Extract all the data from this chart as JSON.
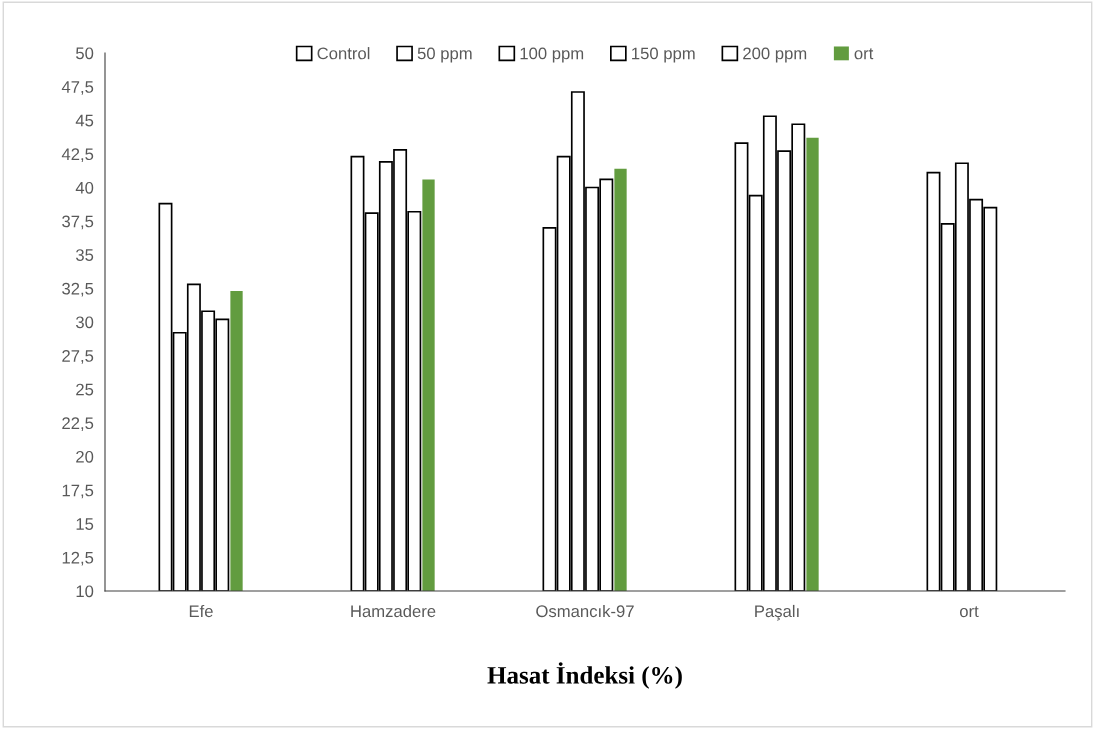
{
  "chart_data": {
    "type": "bar",
    "xlabel": "Hasat İndeksi (%)",
    "categories": [
      "Efe",
      "Hamzadere",
      "Osmancık-97",
      "Paşalı",
      "ort"
    ],
    "series": [
      {
        "name": "Control",
        "color": "#ffffff",
        "values": [
          38.8,
          42.3,
          37.0,
          43.3,
          41.1
        ]
      },
      {
        "name": "50 ppm",
        "color": "#ffffff",
        "values": [
          29.2,
          38.1,
          42.3,
          39.4,
          37.3
        ]
      },
      {
        "name": "100 ppm",
        "color": "#ffffff",
        "values": [
          32.8,
          41.9,
          47.1,
          45.3,
          41.8
        ]
      },
      {
        "name": "150 ppm",
        "color": "#ffffff",
        "values": [
          30.8,
          42.8,
          40.0,
          42.7,
          39.1
        ]
      },
      {
        "name": "200 ppm",
        "color": "#ffffff",
        "values": [
          30.2,
          38.2,
          40.6,
          44.7,
          38.5
        ]
      },
      {
        "name": "ort",
        "color": "#629c3f",
        "values": [
          32.3,
          40.6,
          41.4,
          43.7,
          null
        ]
      }
    ],
    "ylim": [
      10,
      50
    ],
    "yticks": [
      10,
      {
        "value": 12.5,
        "label": "12,5"
      },
      15,
      {
        "value": 17.5,
        "label": "17,5"
      },
      20,
      {
        "value": 22.5,
        "label": "22,5"
      },
      25,
      {
        "value": 27.5,
        "label": "27,5"
      },
      30,
      {
        "value": 32.5,
        "label": "32,5"
      },
      35,
      {
        "value": 37.5,
        "label": "37,5"
      },
      40,
      {
        "value": 42.5,
        "label": "42,5"
      },
      45,
      {
        "value": 47.5,
        "label": "47,5"
      },
      50
    ],
    "grid": false,
    "legend": "top"
  }
}
